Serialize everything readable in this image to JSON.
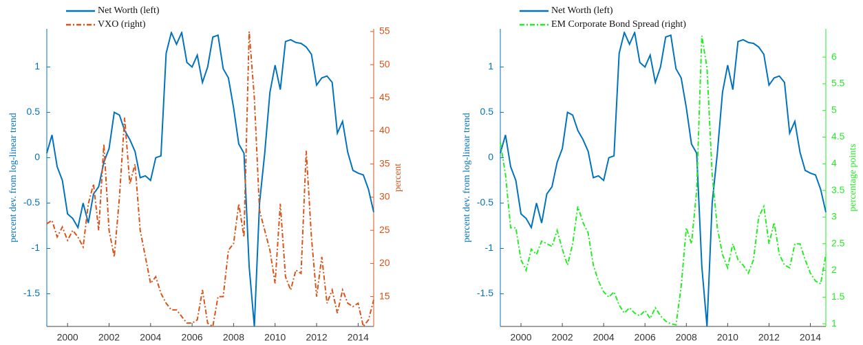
{
  "chart_data": [
    {
      "type": "line",
      "legend": "top-left",
      "ylabel": "percent dev. from log-linear trend",
      "y2label": "percent",
      "x": [
        1999,
        1999.25,
        1999.5,
        1999.75,
        2000,
        2000.25,
        2000.5,
        2000.75,
        2001,
        2001.25,
        2001.5,
        2001.75,
        2002,
        2002.25,
        2002.5,
        2002.75,
        2003,
        2003.25,
        2003.5,
        2003.75,
        2004,
        2004.25,
        2004.5,
        2004.75,
        2005,
        2005.25,
        2005.5,
        2005.75,
        2006,
        2006.25,
        2006.5,
        2006.75,
        2007,
        2007.25,
        2007.5,
        2007.75,
        2008,
        2008.25,
        2008.5,
        2008.75,
        2009,
        2009.25,
        2009.5,
        2009.75,
        2010,
        2010.25,
        2010.5,
        2010.75,
        2011,
        2011.25,
        2011.5,
        2011.75,
        2012,
        2012.25,
        2012.5,
        2012.75,
        2013,
        2013.25,
        2013.5,
        2013.75,
        2014,
        2014.25,
        2014.5,
        2014.75
      ],
      "xlim": [
        1999,
        2014.75
      ],
      "xticks": [
        2000,
        2002,
        2004,
        2006,
        2008,
        2010,
        2012,
        2014
      ],
      "ylim": [
        -1.86,
        1.42
      ],
      "yticks": [
        -1.5,
        -1,
        -0.5,
        0,
        0.5,
        1
      ],
      "y2lim": [
        10.5,
        55.4
      ],
      "y2ticks": [
        15,
        20,
        25,
        30,
        35,
        40,
        45,
        50,
        55
      ],
      "series": [
        {
          "name": "Net Worth (left)",
          "color": "#0072bd",
          "dash": "solid",
          "axis": "y",
          "values": [
            0.05,
            0.25,
            -0.1,
            -0.25,
            -0.62,
            -0.67,
            -0.77,
            -0.5,
            -0.72,
            -0.4,
            -0.32,
            -0.05,
            0.1,
            0.5,
            0.47,
            0.3,
            0.2,
            0.07,
            -0.22,
            -0.2,
            -0.25,
            0.0,
            0.02,
            1.15,
            1.38,
            1.25,
            1.38,
            1.05,
            1.0,
            1.13,
            0.83,
            1.0,
            1.33,
            1.35,
            0.98,
            0.88,
            0.55,
            0.15,
            0.05,
            -1.2,
            -1.86,
            -0.5,
            0.05,
            0.72,
            1.02,
            0.75,
            1.28,
            1.3,
            1.27,
            1.26,
            1.22,
            1.14,
            0.8,
            0.88,
            0.9,
            0.83,
            0.27,
            0.4,
            0.06,
            -0.14,
            -0.17,
            -0.19,
            -0.35,
            -0.6
          ]
        },
        {
          "name": "VXO (right)",
          "color": "#d95319",
          "dash": "dashdot",
          "axis": "y2",
          "values": [
            26,
            26.5,
            24,
            25.5,
            23.5,
            25,
            24,
            22.5,
            29,
            32,
            25,
            38,
            25,
            21,
            30,
            42,
            32,
            35,
            25,
            21,
            17,
            18,
            15.5,
            14,
            13,
            13,
            12,
            11,
            11,
            11.5,
            16,
            11,
            10.5,
            15,
            15,
            22,
            23,
            29,
            24,
            55,
            45,
            28,
            25,
            22,
            17,
            29,
            18,
            16,
            19,
            18.5,
            37,
            24,
            15,
            21,
            14,
            16,
            12.5,
            16,
            14,
            13.5,
            14,
            10.5,
            11.5,
            14.5
          ]
        }
      ]
    },
    {
      "type": "line",
      "legend": "top-left",
      "ylabel": "percent dev. from log-linear trend",
      "y2label": "percentage points",
      "x": [
        1999,
        1999.25,
        1999.5,
        1999.75,
        2000,
        2000.25,
        2000.5,
        2000.75,
        2001,
        2001.25,
        2001.5,
        2001.75,
        2002,
        2002.25,
        2002.5,
        2002.75,
        2003,
        2003.25,
        2003.5,
        2003.75,
        2004,
        2004.25,
        2004.5,
        2004.75,
        2005,
        2005.25,
        2005.5,
        2005.75,
        2006,
        2006.25,
        2006.5,
        2006.75,
        2007,
        2007.25,
        2007.5,
        2007.75,
        2008,
        2008.25,
        2008.5,
        2008.75,
        2009,
        2009.25,
        2009.5,
        2009.75,
        2010,
        2010.25,
        2010.5,
        2010.75,
        2011,
        2011.25,
        2011.5,
        2011.75,
        2012,
        2012.25,
        2012.5,
        2012.75,
        2013,
        2013.25,
        2013.5,
        2013.75,
        2014,
        2014.25,
        2014.5,
        2014.75
      ],
      "xlim": [
        1999,
        2014.75
      ],
      "xticks": [
        2000,
        2002,
        2004,
        2006,
        2008,
        2010,
        2012,
        2014
      ],
      "ylim": [
        -1.86,
        1.42
      ],
      "yticks": [
        -1.5,
        -1,
        -0.5,
        0,
        0.5,
        1
      ],
      "y2lim": [
        0.95,
        6.53
      ],
      "y2ticks": [
        1,
        1.5,
        2,
        2.5,
        3,
        3.5,
        4,
        4.5,
        5,
        5.5,
        6
      ],
      "series": [
        {
          "name": "Net Worth (left)",
          "color": "#0072bd",
          "dash": "solid",
          "axis": "y",
          "values": [
            0.05,
            0.25,
            -0.1,
            -0.25,
            -0.62,
            -0.67,
            -0.77,
            -0.5,
            -0.72,
            -0.4,
            -0.32,
            -0.05,
            0.1,
            0.5,
            0.47,
            0.3,
            0.2,
            0.07,
            -0.22,
            -0.2,
            -0.25,
            0.0,
            0.02,
            1.15,
            1.38,
            1.25,
            1.38,
            1.05,
            1.0,
            1.13,
            0.83,
            1.0,
            1.33,
            1.35,
            0.98,
            0.88,
            0.55,
            0.15,
            0.05,
            -1.2,
            -1.86,
            -0.5,
            0.05,
            0.72,
            1.02,
            0.75,
            1.28,
            1.3,
            1.27,
            1.26,
            1.22,
            1.14,
            0.8,
            0.88,
            0.9,
            0.83,
            0.27,
            0.4,
            0.06,
            -0.14,
            -0.17,
            -0.19,
            -0.35,
            -0.6
          ]
        },
        {
          "name": "EM Corporate Bond Spread (right)",
          "color": "#22ee22",
          "dash": "dashdot",
          "axis": "y2",
          "values": [
            4.4,
            3.8,
            2.8,
            2.8,
            2.2,
            2.0,
            2.4,
            2.3,
            2.55,
            2.5,
            2.45,
            2.75,
            2.4,
            2.1,
            2.5,
            3.2,
            2.9,
            2.7,
            2.1,
            1.8,
            1.6,
            1.5,
            1.6,
            1.35,
            1.2,
            1.3,
            1.2,
            1.15,
            1.25,
            1.1,
            1.3,
            1.15,
            1.05,
            1.0,
            0.98,
            1.7,
            2.8,
            2.5,
            3.5,
            6.4,
            5.8,
            3.8,
            2.8,
            2.3,
            2.05,
            2.5,
            2.2,
            2.1,
            1.95,
            2.2,
            3.0,
            3.2,
            2.5,
            2.9,
            2.3,
            2.1,
            2.05,
            2.5,
            2.5,
            2.2,
            1.95,
            1.8,
            1.75,
            2.3
          ]
        }
      ]
    }
  ]
}
